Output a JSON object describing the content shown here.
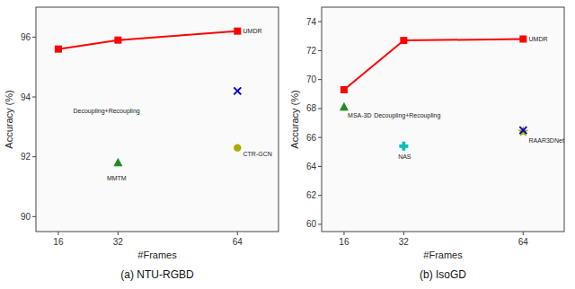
{
  "chart_data": [
    {
      "type": "line",
      "title": "(a) NTU-RGBD",
      "x_label": "#Frames",
      "y_label": "Accuracy (%)",
      "xlim": [
        10,
        75
      ],
      "xticks": [
        16,
        32,
        64
      ],
      "ylim": [
        89.5,
        97.0
      ],
      "yticks": [
        90,
        92,
        94,
        96
      ],
      "series": [
        {
          "type": "line",
          "color": "#ff0000",
          "marker": "square",
          "x": [
            16,
            32,
            64
          ],
          "values": [
            95.6,
            95.9,
            96.2
          ]
        },
        {
          "type": "scatter",
          "color": "#228B22",
          "marker": "triangle",
          "x": [
            32
          ],
          "values": [
            91.8
          ]
        },
        {
          "type": "scatter",
          "color": "#0000cc",
          "marker": "x",
          "x": [
            64
          ],
          "values": [
            94.2
          ]
        },
        {
          "type": "scatter",
          "color": "#aaaa00",
          "marker": "circle",
          "x": [
            64
          ],
          "values": [
            92.3
          ]
        }
      ],
      "annotations": [
        {
          "text": "UMDR",
          "x": 65.5,
          "y": 96.2
        },
        {
          "text": "Decoupling+Recoupling",
          "x": 20,
          "y": 93.55
        },
        {
          "text": "MMTM",
          "x": 29,
          "y": 91.3
        },
        {
          "text": "CTR-GCN",
          "x": 65.5,
          "y": 92.1
        }
      ]
    },
    {
      "type": "line",
      "title": "(b) IsoGD",
      "x_label": "#Frames",
      "y_label": "Accuracy (%)",
      "xlim": [
        10,
        75
      ],
      "xticks": [
        16,
        32,
        64
      ],
      "ylim": [
        59.5,
        75.0
      ],
      "yticks": [
        60,
        62,
        64,
        66,
        68,
        70,
        72,
        74
      ],
      "series": [
        {
          "type": "line",
          "color": "#ff0000",
          "marker": "square",
          "x": [
            16,
            32,
            64
          ],
          "values": [
            69.3,
            72.7,
            72.8
          ]
        },
        {
          "type": "scatter",
          "color": "#228B22",
          "marker": "triangle",
          "x": [
            16
          ],
          "values": [
            68.1
          ]
        },
        {
          "type": "scatter",
          "color": "#00bbbb",
          "marker": "plus",
          "x": [
            32
          ],
          "values": [
            65.4
          ]
        },
        {
          "type": "scatter",
          "color": "#aaaa00",
          "marker": "star",
          "x": [
            64
          ],
          "values": [
            66.4
          ]
        },
        {
          "type": "scatter",
          "color": "#0000cc",
          "marker": "x",
          "x": [
            64
          ],
          "values": [
            66.5
          ]
        }
      ],
      "annotations": [
        {
          "text": "UMDR",
          "x": 65.5,
          "y": 72.8
        },
        {
          "text": "MSA-3D",
          "x": 17,
          "y": 67.5
        },
        {
          "text": "NAS",
          "x": 30.5,
          "y": 64.7
        },
        {
          "text": "Decoupling+Recoupling",
          "x": 24,
          "y": 67.5
        },
        {
          "text": "RAAR3DNet",
          "x": 65.5,
          "y": 65.8
        }
      ]
    }
  ]
}
